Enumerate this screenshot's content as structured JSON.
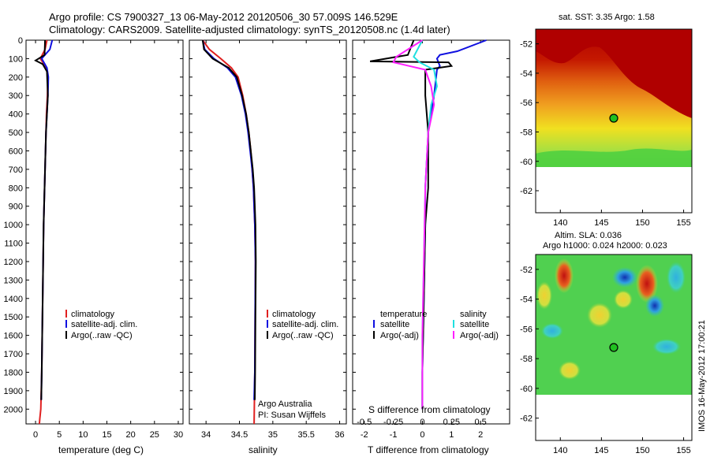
{
  "header": {
    "title_line1": "Argo profile: CS 7900327_13 06-May-2012 20120506_30 57.009S 146.529E",
    "title_line2": "Climatology: CARS2009. Satellite-adjusted climatology: synTS_20120508.nc (1.4d later)"
  },
  "colors": {
    "climatology": "#e02020",
    "satellite": "#1010e0",
    "argo": "#000000",
    "sal_satellite": "#20e0e0",
    "sal_argo": "#ff20ff"
  },
  "chart_data": [
    {
      "type": "line",
      "panel": "temperature",
      "xlabel": "temperature (deg C)",
      "ylim": [
        0,
        2080
      ],
      "xlim": [
        -2,
        31
      ],
      "yticks": [
        0,
        100,
        200,
        300,
        400,
        500,
        600,
        700,
        800,
        900,
        1000,
        1100,
        1200,
        1300,
        1400,
        1500,
        1600,
        1700,
        1800,
        1900,
        2000
      ],
      "xticks": [
        0,
        5,
        10,
        15,
        20,
        25,
        30
      ],
      "y_reversed": true,
      "legend": [
        "climatology",
        "satellite-adj. clim.",
        "Argo(..raw -QC)"
      ],
      "legend_position": "lower-right",
      "series": [
        {
          "name": "climatology",
          "x": [
            2.4,
            2.0,
            1.0,
            2.3,
            2.6,
            2.5,
            2.3,
            2.2,
            2.1,
            2.0,
            1.9,
            1.8,
            1.7,
            1.6,
            1.5,
            1.4,
            1.3,
            1.2,
            1.1,
            0.9,
            0.8
          ],
          "depth": [
            0,
            50,
            100,
            150,
            200,
            300,
            400,
            500,
            600,
            700,
            800,
            900,
            1000,
            1200,
            1400,
            1600,
            1800,
            1900,
            2000,
            2050,
            2080
          ]
        },
        {
          "name": "satellite-adj. clim.",
          "x": [
            3.5,
            3.0,
            1.3,
            2.4,
            2.7,
            2.6,
            2.4,
            2.2,
            2.1,
            2.0,
            1.9,
            1.8,
            1.7,
            1.6,
            1.5,
            1.4,
            1.3,
            1.2
          ],
          "depth": [
            0,
            50,
            100,
            150,
            200,
            300,
            400,
            500,
            600,
            700,
            800,
            900,
            1000,
            1200,
            1400,
            1600,
            1800,
            1950
          ]
        },
        {
          "name": "Argo(..raw -QC)",
          "x": [
            2.0,
            1.9,
            0.0,
            1.5,
            2.4,
            2.6,
            2.4,
            2.2,
            2.1,
            2.0,
            1.9,
            1.8,
            1.7,
            1.6,
            1.5,
            1.4,
            1.3,
            1.2
          ],
          "depth": [
            0,
            80,
            110,
            130,
            170,
            300,
            400,
            500,
            600,
            700,
            800,
            900,
            1000,
            1200,
            1400,
            1600,
            1800,
            1950
          ]
        }
      ]
    },
    {
      "type": "line",
      "panel": "salinity",
      "xlabel": "salinity",
      "ylim": [
        0,
        2080
      ],
      "xlim": [
        33.75,
        36.1
      ],
      "xticks": [
        34,
        34.5,
        35,
        35.5,
        36
      ],
      "y_reversed": true,
      "legend": [
        "climatology",
        "satellite-adj. clim.",
        "Argo(..raw -QC)"
      ],
      "legend_position": "lower-right",
      "annotation": [
        "Argo Australia",
        "PI: Susan Wijffels"
      ],
      "series": [
        {
          "name": "climatology",
          "x": [
            33.95,
            34.05,
            34.22,
            34.38,
            34.48,
            34.55,
            34.6,
            34.64,
            34.67,
            34.69,
            34.71,
            34.72,
            34.73,
            34.74,
            34.735,
            34.73,
            34.72
          ],
          "depth": [
            0,
            50,
            100,
            150,
            200,
            300,
            400,
            500,
            600,
            700,
            800,
            900,
            1000,
            1200,
            1500,
            1800,
            2080
          ]
        },
        {
          "name": "satellite-adj. clim.",
          "x": [
            33.95,
            33.98,
            34.12,
            34.32,
            34.44,
            34.53,
            34.59,
            34.63,
            34.66,
            34.69,
            34.71,
            34.72,
            34.73,
            34.74,
            34.735,
            34.73,
            34.72
          ],
          "depth": [
            0,
            50,
            100,
            150,
            200,
            300,
            400,
            500,
            600,
            700,
            800,
            900,
            1000,
            1200,
            1500,
            1800,
            1950
          ]
        },
        {
          "name": "Argo(..raw -QC)",
          "x": [
            33.95,
            33.97,
            34.1,
            34.34,
            34.46,
            34.54,
            34.6,
            34.64,
            34.67,
            34.7,
            34.72,
            34.73,
            34.74,
            34.745,
            34.74,
            34.735,
            34.73
          ],
          "depth": [
            0,
            50,
            100,
            150,
            200,
            300,
            400,
            500,
            600,
            700,
            800,
            900,
            1000,
            1200,
            1500,
            1800,
            1950
          ]
        }
      ]
    },
    {
      "type": "line",
      "panel": "difference",
      "xlabel": "T difference from climatology",
      "xlabel_top": "S difference from climatology",
      "ylim": [
        0,
        2080
      ],
      "xlim": [
        -2.4,
        3.0
      ],
      "xticks": [
        -2,
        -1,
        0,
        1,
        2
      ],
      "xticks_top": [
        "-0.5",
        "-0.25",
        "0",
        "0.25",
        "0.5"
      ],
      "y_reversed": true,
      "legend_temperature_heading": "temperature",
      "legend_salinity_heading": "salinity",
      "legend_temperature": [
        "satellite",
        "Argo(-adj)"
      ],
      "legend_salinity": [
        "satellite",
        "Argo(-adj)"
      ],
      "series": [
        {
          "name": "temperature satellite",
          "x": [
            2.2,
            1.2,
            0.6,
            0.5,
            0.6,
            0.5,
            0.4,
            0.2,
            0.1,
            0.1,
            0.05,
            0.0,
            0.0
          ],
          "depth": [
            0,
            60,
            80,
            100,
            140,
            160,
            300,
            500,
            800,
            1000,
            1400,
            1800,
            2000
          ]
        },
        {
          "name": "temperature Argo(-adj)",
          "x": [
            -0.3,
            -0.5,
            -1.8,
            0.9,
            1.0,
            0.1,
            0.1,
            0.2,
            0.2,
            0.1,
            0.05,
            0.0,
            0.0
          ],
          "depth": [
            0,
            80,
            115,
            120,
            140,
            160,
            300,
            500,
            800,
            1000,
            1400,
            1800,
            2000
          ]
        },
        {
          "name": "salinity satellite",
          "x": [
            0.0,
            -0.3,
            -0.1,
            0.4,
            0.5,
            0.3,
            0.2,
            0.1,
            0.05,
            0.0,
            0.0
          ],
          "depth": [
            0,
            90,
            120,
            160,
            250,
            350,
            500,
            800,
            1200,
            1600,
            2000
          ]
        },
        {
          "name": "salinity Argo(-adj)",
          "x": [
            0.0,
            -0.9,
            -1.0,
            0.1,
            0.3,
            0.4,
            0.2,
            0.1,
            0.05,
            0.0,
            0.0
          ],
          "depth": [
            0,
            90,
            120,
            160,
            250,
            350,
            500,
            800,
            1200,
            1600,
            2000
          ]
        }
      ]
    },
    {
      "type": "heatmap",
      "panel": "sst_map",
      "title": "sat. SST: 3.35  Argo: 1.58",
      "xticks": [
        140,
        145,
        150,
        155
      ],
      "yticks": [
        -52,
        -54,
        -56,
        -58,
        -60,
        -62
      ],
      "xlim": [
        137,
        156
      ],
      "ylim": [
        -63.5,
        -51
      ],
      "data_extent_lat": [
        -60,
        -51
      ],
      "marker": {
        "lon": 146.529,
        "lat": -57.009
      }
    },
    {
      "type": "heatmap",
      "panel": "sla_map",
      "title_line1": "Altim. SLA: 0.036",
      "title_line2": "Argo h1000: 0.024 h2000: 0.023",
      "xticks": [
        140,
        145,
        150,
        155
      ],
      "yticks": [
        -52,
        -54,
        -56,
        -58,
        -60,
        -62
      ],
      "xlim": [
        137,
        156
      ],
      "ylim": [
        -63.5,
        -51
      ],
      "data_extent_lat": [
        -60,
        -51
      ],
      "marker": {
        "lon": 146.529,
        "lat": -57.009
      }
    }
  ],
  "side_label": "IMOS 16-May-2012 17:00:21"
}
